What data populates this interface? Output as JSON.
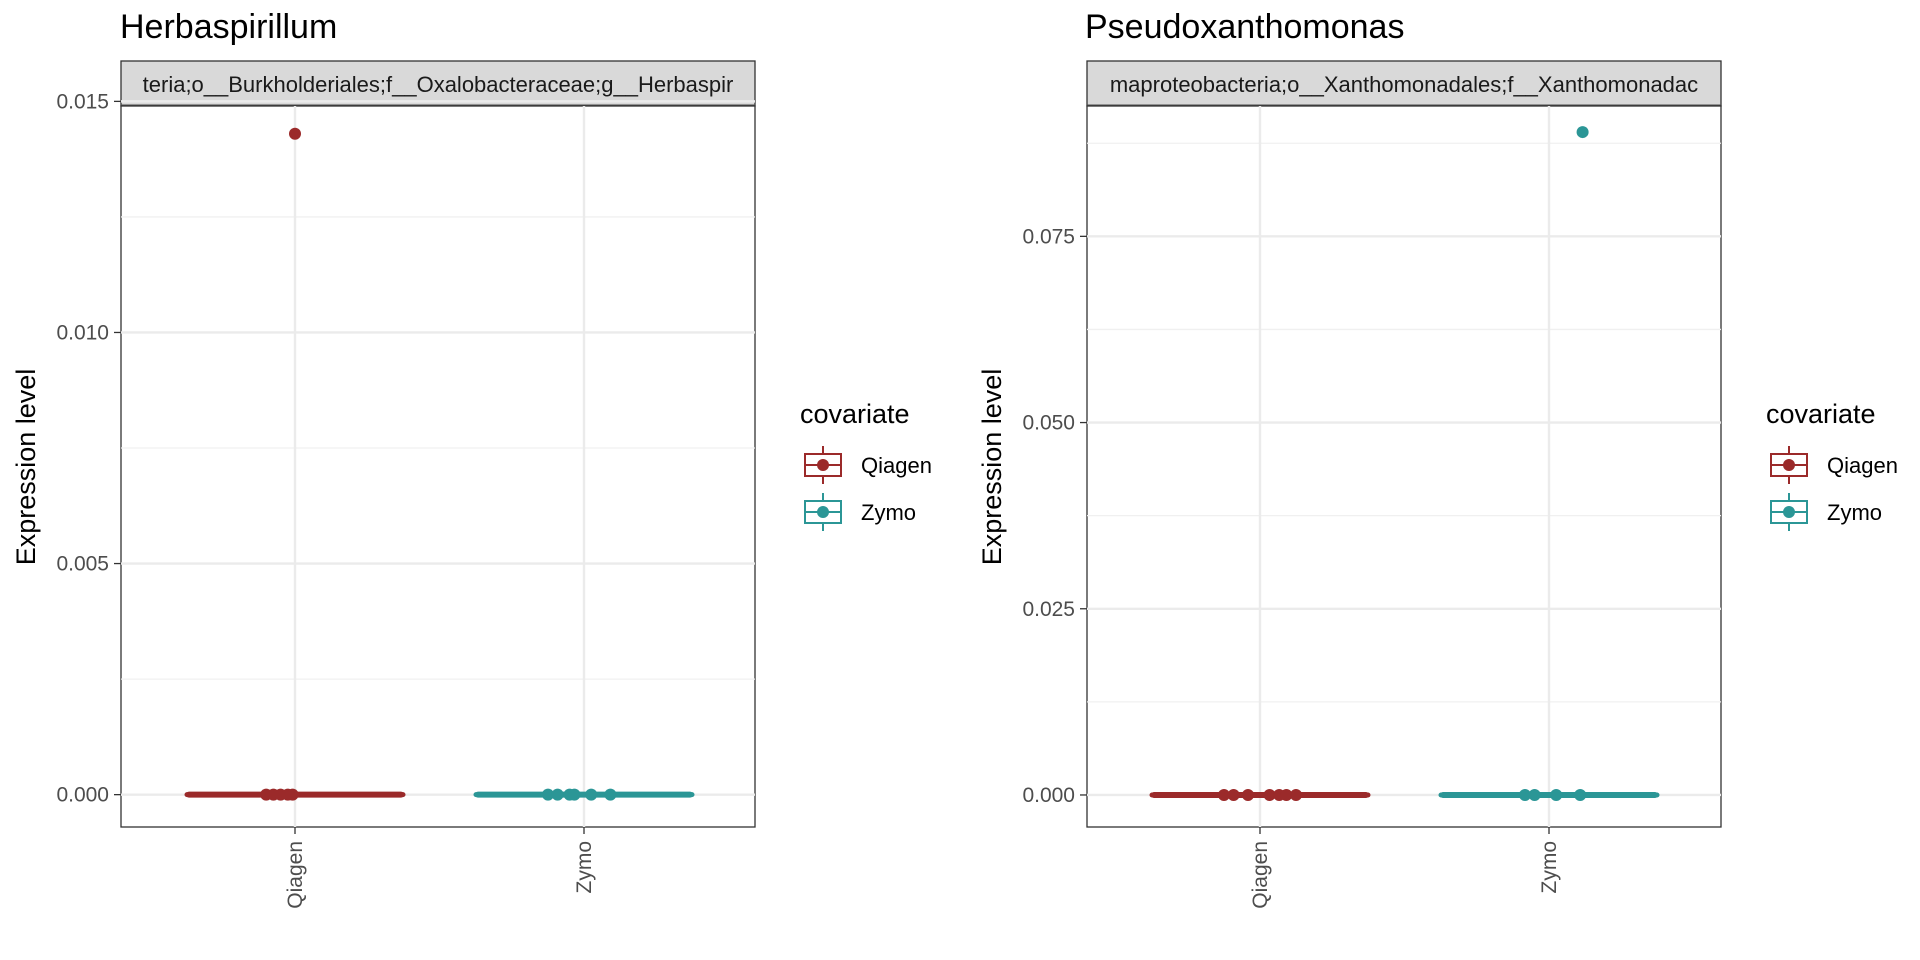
{
  "chart_data": [
    {
      "type": "boxplot",
      "title": "Herbaspirillum",
      "strip_label": "teria;o__Burkholderiales;f__Oxalobacteraceae;g__Herbaspir",
      "ylabel": "Expression level",
      "xlabel": "",
      "categories": [
        "Qiagen",
        "Zymo"
      ],
      "ylim": [
        -0.0007,
        0.0149
      ],
      "yticks": [
        0.0,
        0.005,
        0.01,
        0.015
      ],
      "ytick_labels": [
        "0.000",
        "0.005",
        "0.010",
        "0.015"
      ],
      "grid": true,
      "legend_placement": "right",
      "series": [
        {
          "name": "Qiagen",
          "color": "#9b2a2a",
          "box": {
            "q1": 0,
            "median": 0,
            "q3": 0,
            "whisker_low": 0,
            "whisker_high": 0
          },
          "points": [
            {
              "x": -0.12,
              "y": 0.0
            },
            {
              "x": -0.09,
              "y": 0.0
            },
            {
              "x": -0.06,
              "y": 0.0
            },
            {
              "x": -0.03,
              "y": 0.0
            },
            {
              "x": -0.01,
              "y": 0.0
            },
            {
              "x": 0.0,
              "y": 0.0143
            }
          ]
        },
        {
          "name": "Zymo",
          "color": "#2b9696",
          "box": {
            "q1": 0,
            "median": 0,
            "q3": 0,
            "whisker_low": 0,
            "whisker_high": 0
          },
          "points": [
            {
              "x": -0.15,
              "y": 0.0
            },
            {
              "x": -0.11,
              "y": 0.0
            },
            {
              "x": -0.06,
              "y": 0.0
            },
            {
              "x": -0.04,
              "y": 0.0
            },
            {
              "x": 0.03,
              "y": 0.0
            },
            {
              "x": 0.11,
              "y": 0.0
            }
          ]
        }
      ]
    },
    {
      "type": "boxplot",
      "title": "Pseudoxanthomonas",
      "strip_label": "maproteobacteria;o__Xanthomonadales;f__Xanthomonadac",
      "ylabel": "Expression level",
      "xlabel": "",
      "categories": [
        "Qiagen",
        "Zymo"
      ],
      "ylim": [
        -0.0043,
        0.0925
      ],
      "yticks": [
        0.0,
        0.025,
        0.05,
        0.075
      ],
      "ytick_labels": [
        "0.000",
        "0.025",
        "0.050",
        "0.075"
      ],
      "grid": true,
      "legend_placement": "right",
      "series": [
        {
          "name": "Qiagen",
          "color": "#9b2a2a",
          "box": {
            "q1": 0,
            "median": 0,
            "q3": 0,
            "whisker_low": 0,
            "whisker_high": 0
          },
          "points": [
            {
              "x": -0.15,
              "y": 0.0
            },
            {
              "x": -0.11,
              "y": 0.0
            },
            {
              "x": -0.05,
              "y": 0.0
            },
            {
              "x": 0.04,
              "y": 0.0
            },
            {
              "x": 0.08,
              "y": 0.0
            },
            {
              "x": 0.11,
              "y": 0.0
            },
            {
              "x": 0.15,
              "y": 0.0
            }
          ]
        },
        {
          "name": "Zymo",
          "color": "#2b9696",
          "box": {
            "q1": 0,
            "median": 0,
            "q3": 0,
            "whisker_low": 0,
            "whisker_high": 0
          },
          "points": [
            {
              "x": -0.1,
              "y": 0.0
            },
            {
              "x": -0.06,
              "y": 0.0
            },
            {
              "x": 0.03,
              "y": 0.0
            },
            {
              "x": 0.13,
              "y": 0.0
            },
            {
              "x": 0.14,
              "y": 0.089
            }
          ]
        }
      ]
    }
  ],
  "legend": {
    "title": "covariate",
    "items": [
      {
        "label": "Qiagen",
        "color": "#9b2a2a"
      },
      {
        "label": "Zymo",
        "color": "#2b9696"
      }
    ]
  }
}
